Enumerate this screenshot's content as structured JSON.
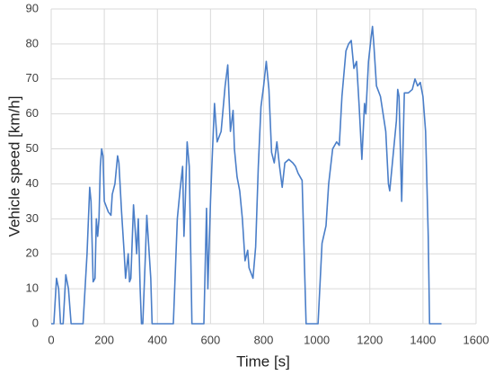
{
  "chart_data": {
    "type": "line",
    "x_label": "Time [s]",
    "y_label": "Vehicle speed [km/h]",
    "xlim": [
      0,
      1600
    ],
    "xticks": [
      0,
      200,
      400,
      600,
      800,
      1000,
      1200,
      1400,
      1600
    ],
    "ylim": [
      0,
      90
    ],
    "yticks": [
      0,
      10,
      20,
      30,
      40,
      50,
      60,
      70,
      80,
      90
    ],
    "grid": true,
    "series": [
      {
        "name": "Vehicle speed",
        "color": "#4a7ec8",
        "x": [
          0,
          10,
          20,
          28,
          35,
          45,
          55,
          65,
          75,
          120,
          135,
          145,
          150,
          158,
          165,
          170,
          175,
          180,
          185,
          190,
          195,
          200,
          215,
          225,
          230,
          240,
          250,
          255,
          265,
          275,
          280,
          290,
          295,
          300,
          310,
          318,
          322,
          328,
          335,
          340,
          345,
          355,
          360,
          365,
          375,
          380,
          420,
          460,
          475,
          485,
          495,
          500,
          505,
          512,
          520,
          530,
          560,
          575,
          585,
          590,
          600,
          605,
          615,
          625,
          640,
          655,
          665,
          675,
          685,
          690,
          700,
          710,
          720,
          730,
          740,
          745,
          760,
          770,
          780,
          790,
          800,
          810,
          820,
          830,
          840,
          850,
          860,
          870,
          880,
          895,
          910,
          920,
          930,
          945,
          960,
          1000,
          1005,
          1020,
          1035,
          1045,
          1060,
          1075,
          1085,
          1095,
          1110,
          1120,
          1130,
          1140,
          1150,
          1160,
          1170,
          1180,
          1185,
          1195,
          1205,
          1210,
          1215,
          1225,
          1240,
          1260,
          1270,
          1275,
          1285,
          1300,
          1305,
          1310,
          1320,
          1330,
          1345,
          1360,
          1370,
          1380,
          1390,
          1400,
          1410,
          1420,
          1425,
          1470
        ],
        "values": [
          0,
          0,
          13,
          10,
          0,
          0,
          14,
          10,
          0,
          0,
          20,
          39,
          35,
          12,
          13,
          30,
          25,
          30,
          45,
          50,
          48,
          35,
          32,
          31,
          37,
          40,
          48,
          46,
          32,
          20,
          13,
          20,
          12,
          13,
          34,
          25,
          20,
          30,
          10,
          0,
          0,
          20,
          31,
          25,
          13,
          0,
          0,
          0,
          30,
          38,
          45,
          25,
          35,
          52,
          45,
          0,
          0,
          0,
          33,
          10,
          35,
          45,
          63,
          52,
          55,
          68,
          74,
          55,
          61,
          50,
          42,
          38,
          30,
          18,
          21,
          16,
          13,
          22,
          45,
          62,
          68,
          75,
          67,
          49,
          46,
          52,
          45,
          39,
          46,
          47,
          46,
          45,
          43,
          41,
          0,
          0,
          0,
          23,
          28,
          40,
          50,
          52,
          51,
          65,
          78,
          80,
          81,
          73,
          75,
          62,
          47,
          63,
          60,
          75,
          82,
          85,
          80,
          68,
          65,
          55,
          40,
          38,
          46,
          58,
          67,
          65,
          35,
          66,
          66,
          67,
          70,
          68,
          69,
          65,
          55,
          25,
          0,
          0
        ]
      }
    ]
  }
}
